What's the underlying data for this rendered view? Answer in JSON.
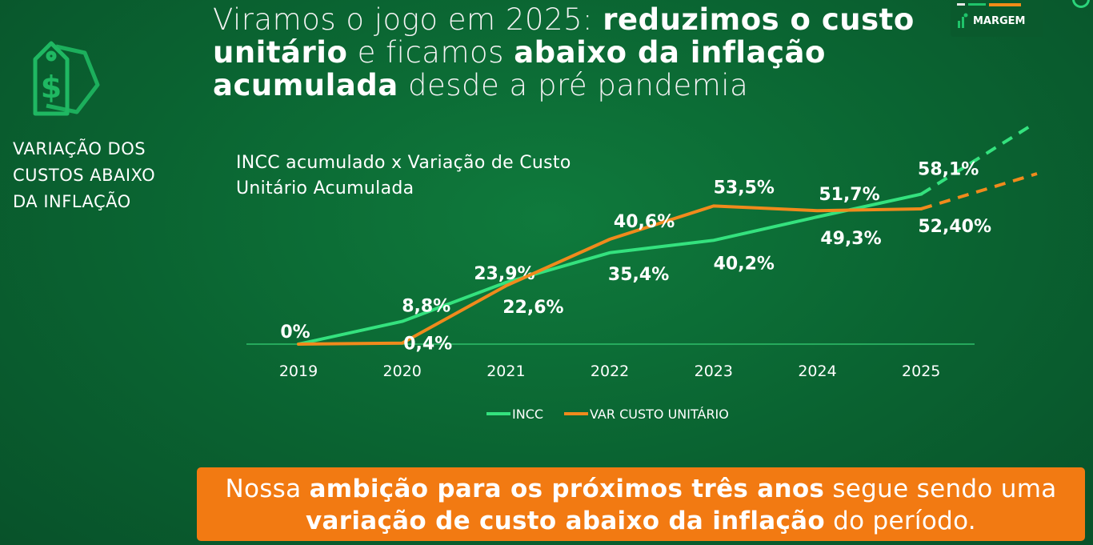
{
  "headline": {
    "part1": "Viramos o jogo em 2025: ",
    "part2": "reduzimos o custo unitário",
    "part3": " e ficamos ",
    "part4": "abaixo da inflação acumulada",
    "part5": " desde a pré pandemia"
  },
  "side_label": "VARIAÇÃO DOS CUSTOS ABAIXO DA INFLAÇÃO",
  "badge": {
    "label": "MARGEM"
  },
  "chart_title": "INCC acumulado x Variação de Custo Unitário Acumulada",
  "chart_data": {
    "type": "line",
    "title": "INCC acumulado x Variação de Custo Unitário Acumulada",
    "categories": [
      "2019",
      "2020",
      "2021",
      "2022",
      "2023",
      "2024",
      "2025"
    ],
    "series": [
      {
        "name": "INCC",
        "color": "#34e27e",
        "values": [
          0,
          8.8,
          23.9,
          35.4,
          40.2,
          49.3,
          58.1
        ],
        "labels": [
          "0%",
          "8,8%",
          "23,9%",
          "35,4%",
          "40,2%",
          "49,3%",
          "58,1%"
        ],
        "projection": "dashed line continuing upward after 2025"
      },
      {
        "name": "VAR CUSTO UNITÁRIO",
        "color": "#f08a1c",
        "values": [
          0,
          0.4,
          22.6,
          40.6,
          53.5,
          51.7,
          52.4
        ],
        "labels": [
          "",
          "0,4%",
          "22,6%",
          "40,6%",
          "53,5%",
          "51,7%",
          "52,40%"
        ],
        "projection": "dashed line continuing nearly flat after 2025"
      }
    ],
    "ylim": [
      0,
      62
    ],
    "grid": false,
    "legend_position": "bottom"
  },
  "ambition": {
    "part1": "Nossa ",
    "part2": "ambição para os próximos três anos",
    "part3": " segue sendo uma ",
    "part4": "variação de custo abaixo da inflação",
    "part5": " do período."
  },
  "colors": {
    "background": "#0a6331",
    "incc": "#34e27e",
    "custo": "#f08a1c",
    "ambition_box": "#f27a12"
  }
}
